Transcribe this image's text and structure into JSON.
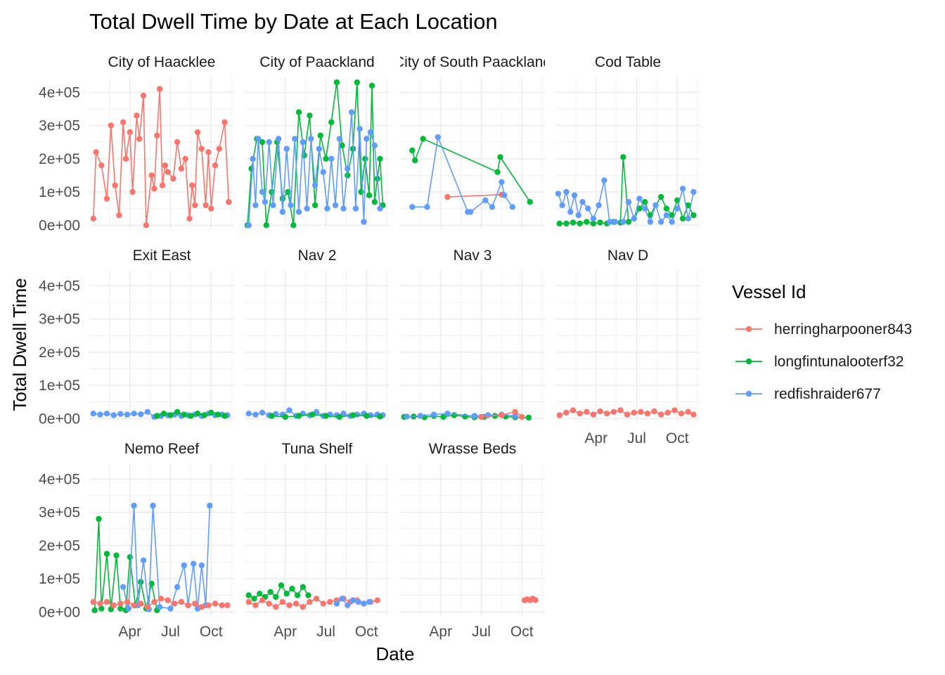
{
  "chart_data": {
    "type": "line",
    "title": "Total Dwell Time by Date at Each Location",
    "xlabel": "Date",
    "ylabel": "Total Dwell Time",
    "x_tick_labels": [
      "Apr",
      "Jul",
      "Oct"
    ],
    "y_tick_labels": [
      "0e+00",
      "1e+05",
      "2e+05",
      "3e+05",
      "4e+05"
    ],
    "y_ticks": [
      0,
      100000,
      200000,
      300000,
      400000
    ],
    "ylim": [
      -10000,
      445000
    ],
    "xlim": [
      0,
      10.7
    ],
    "x_tick_positions": [
      3,
      6,
      9
    ],
    "grid": true,
    "legend": {
      "title": "Vessel Id",
      "position": "right",
      "entries": [
        {
          "name": "herringharpooner843",
          "color": "#F8766D"
        },
        {
          "name": "longfintunalooterf32",
          "color": "#00BA38"
        },
        {
          "name": "redfishraider677",
          "color": "#619CFF"
        }
      ]
    },
    "facets": [
      {
        "name": "City of Haacklee",
        "series": [
          {
            "name": "herringharpooner843",
            "x": [
              0.3,
              0.5,
              0.9,
              1.3,
              1.6,
              1.9,
              2.2,
              2.5,
              2.7,
              3.0,
              3.2,
              3.5,
              3.7,
              4.0,
              4.2,
              4.6,
              4.8,
              5.0,
              5.2,
              5.4,
              5.6,
              5.8,
              6.2,
              6.5,
              6.8,
              7.1,
              7.4,
              7.6,
              7.8,
              8.0,
              8.3,
              8.6,
              8.8,
              9.0,
              9.3,
              9.6,
              10.0,
              10.3
            ],
            "y": [
              20000,
              220000,
              180000,
              80000,
              300000,
              120000,
              30000,
              310000,
              200000,
              280000,
              100000,
              330000,
              260000,
              390000,
              0,
              150000,
              110000,
              270000,
              410000,
              120000,
              180000,
              160000,
              140000,
              250000,
              170000,
              200000,
              20000,
              120000,
              60000,
              280000,
              230000,
              60000,
              220000,
              50000,
              180000,
              230000,
              310000,
              70000
            ]
          }
        ]
      },
      {
        "name": "City of Paackland",
        "series": [
          {
            "name": "longfintunalooterf32",
            "x": [
              0.2,
              0.5,
              0.9,
              1.3,
              1.6,
              2.0,
              2.4,
              2.8,
              3.2,
              3.6,
              4.0,
              4.4,
              4.8,
              5.2,
              5.6,
              6.0,
              6.4,
              6.8,
              7.2,
              7.6,
              8.0,
              8.3,
              8.6,
              8.9,
              9.2,
              9.4,
              9.6,
              9.8,
              10.0,
              10.2
            ],
            "y": [
              0,
              170000,
              260000,
              250000,
              0,
              100000,
              250000,
              80000,
              100000,
              0,
              340000,
              210000,
              330000,
              60000,
              270000,
              200000,
              310000,
              430000,
              240000,
              150000,
              230000,
              430000,
              100000,
              200000,
              90000,
              420000,
              70000,
              140000,
              200000,
              60000
            ]
          },
          {
            "name": "redfishraider677",
            "x": [
              0.3,
              0.6,
              0.8,
              1.0,
              1.3,
              1.5,
              1.8,
              2.1,
              2.5,
              2.8,
              3.1,
              3.4,
              3.7,
              4.0,
              4.3,
              4.6,
              4.9,
              5.2,
              5.5,
              5.8,
              6.1,
              6.4,
              6.7,
              7.0,
              7.3,
              7.6,
              7.9,
              8.2,
              8.5,
              8.8,
              9.0,
              9.3,
              9.6,
              10.0
            ],
            "y": [
              0,
              200000,
              60000,
              260000,
              100000,
              70000,
              250000,
              60000,
              260000,
              40000,
              230000,
              60000,
              260000,
              40000,
              250000,
              50000,
              260000,
              120000,
              230000,
              160000,
              50000,
              200000,
              60000,
              260000,
              50000,
              170000,
              340000,
              50000,
              290000,
              10000,
              260000,
              280000,
              240000,
              50000
            ]
          }
        ]
      },
      {
        "name": "City of South Paackland",
        "series": [
          {
            "name": "herringharpooner843",
            "x": [
              3.5,
              7.5
            ],
            "y": [
              85000,
              92000
            ]
          },
          {
            "name": "longfintunalooterf32",
            "x": [
              0.9,
              1.1,
              1.7,
              7.2,
              7.4,
              9.6
            ],
            "y": [
              225000,
              195000,
              260000,
              160000,
              205000,
              70000
            ]
          },
          {
            "name": "redfishraider677",
            "x": [
              0.9,
              2.0,
              2.8,
              5.0,
              5.2,
              6.3,
              6.8,
              7.5,
              7.7,
              8.3
            ],
            "y": [
              55000,
              55000,
              265000,
              40000,
              40000,
              75000,
              55000,
              130000,
              90000,
              55000
            ]
          }
        ]
      },
      {
        "name": "Cod Table",
        "series": [
          {
            "name": "longfintunalooterf32",
            "x": [
              0.3,
              0.8,
              1.3,
              1.8,
              2.3,
              2.8,
              3.3,
              3.8,
              4.3,
              4.8,
              5.0,
              5.4,
              5.8,
              6.2,
              6.6,
              7.0,
              7.4,
              7.8,
              8.2,
              8.6,
              9.0,
              9.4,
              9.8,
              10.2
            ],
            "y": [
              5000,
              5000,
              8000,
              5000,
              10000,
              5000,
              8000,
              5000,
              10000,
              8000,
              205000,
              10000,
              20000,
              50000,
              70000,
              30000,
              60000,
              85000,
              50000,
              30000,
              75000,
              20000,
              60000,
              30000
            ]
          },
          {
            "name": "redfishraider677",
            "x": [
              0.2,
              0.5,
              0.8,
              1.1,
              1.4,
              1.7,
              2.0,
              2.4,
              2.8,
              3.2,
              3.6,
              4.0,
              4.4,
              5.0,
              5.4,
              5.8,
              6.2,
              6.6,
              7.0,
              7.4,
              7.8,
              8.2,
              8.6,
              9.0,
              9.4,
              9.8,
              10.2
            ],
            "y": [
              95000,
              60000,
              100000,
              40000,
              90000,
              30000,
              70000,
              50000,
              20000,
              60000,
              135000,
              10000,
              10000,
              10000,
              70000,
              20000,
              80000,
              50000,
              10000,
              60000,
              10000,
              30000,
              10000,
              50000,
              110000,
              20000,
              100000
            ]
          }
        ]
      },
      {
        "name": "Exit East",
        "series": [
          {
            "name": "redfishraider677",
            "x": [
              0.3,
              0.8,
              1.3,
              1.8,
              2.3,
              2.8,
              3.3,
              3.8,
              4.3,
              4.8,
              5.3,
              5.8,
              6.3,
              6.8,
              7.3,
              7.8,
              8.3,
              8.8,
              9.3,
              9.8,
              10.2
            ],
            "y": [
              15000,
              12000,
              15000,
              10000,
              14000,
              12000,
              15000,
              13000,
              20000,
              5000,
              8000,
              10000,
              12000,
              8000,
              10000,
              12000,
              8000,
              15000,
              10000,
              12000,
              10000
            ]
          },
          {
            "name": "longfintunalooterf32",
            "x": [
              5.0,
              5.5,
              6.0,
              6.5,
              7.0,
              7.5,
              8.0,
              8.5,
              9.0,
              9.5,
              10.0
            ],
            "y": [
              8000,
              15000,
              10000,
              20000,
              12000,
              8000,
              15000,
              10000,
              18000,
              12000,
              8000
            ]
          }
        ]
      },
      {
        "name": "Nav 2",
        "series": [
          {
            "name": "redfishraider677",
            "x": [
              0.3,
              0.8,
              1.3,
              1.8,
              2.3,
              2.8,
              3.3,
              3.8,
              4.3,
              4.8,
              5.3,
              5.8,
              6.3,
              6.8,
              7.3,
              7.8,
              8.3,
              8.8,
              9.3,
              9.8,
              10.2
            ],
            "y": [
              15000,
              12000,
              18000,
              10000,
              14000,
              12000,
              25000,
              8000,
              15000,
              10000,
              20000,
              8000,
              12000,
              10000,
              15000,
              8000,
              12000,
              15000,
              10000,
              12000,
              10000
            ]
          },
          {
            "name": "longfintunalooterf32",
            "x": [
              2.0,
              3.0,
              4.0,
              5.0,
              6.0,
              7.0,
              8.0,
              9.0,
              10.0
            ],
            "y": [
              8000,
              5000,
              8000,
              12000,
              8000,
              5000,
              10000,
              8000,
              6000
            ]
          }
        ]
      },
      {
        "name": "Nav 3",
        "series": [
          {
            "name": "longfintunalooterf32",
            "x": [
              0.3,
              1.0,
              1.8,
              2.5,
              3.2,
              4.0,
              4.8,
              5.5,
              6.2,
              7.0,
              7.8,
              8.5,
              9.5
            ],
            "y": [
              5000,
              6000,
              4000,
              8000,
              5000,
              10000,
              6000,
              4000,
              5000,
              8000,
              6000,
              4000,
              3000
            ]
          },
          {
            "name": "redfishraider677",
            "x": [
              0.5,
              1.5,
              2.5,
              3.5,
              5.5,
              6.5,
              7.5,
              8.5
            ],
            "y": [
              6000,
              8000,
              12000,
              15000,
              8000,
              10000,
              12000,
              8000
            ]
          },
          {
            "name": "herringharpooner843",
            "x": [
              6.0,
              7.5,
              8.5,
              9.0
            ],
            "y": [
              5000,
              10000,
              20000,
              5000
            ]
          }
        ]
      },
      {
        "name": "Nav D",
        "series": [
          {
            "name": "herringharpooner843",
            "x": [
              0.3,
              0.8,
              1.3,
              1.8,
              2.3,
              2.8,
              3.3,
              3.8,
              4.3,
              4.8,
              5.3,
              5.8,
              6.3,
              6.8,
              7.3,
              7.8,
              8.3,
              8.8,
              9.3,
              9.8,
              10.2
            ],
            "y": [
              10000,
              18000,
              25000,
              15000,
              20000,
              12000,
              22000,
              15000,
              20000,
              25000,
              12000,
              18000,
              20000,
              15000,
              22000,
              12000,
              18000,
              25000,
              15000,
              20000,
              12000
            ]
          }
        ]
      },
      {
        "name": "Nemo Reef",
        "series": [
          {
            "name": "longfintunalooterf32",
            "x": [
              0.4,
              0.7,
              0.9,
              1.3,
              1.6,
              2.0,
              2.3,
              2.7,
              3.0,
              3.4,
              3.8,
              4.2,
              4.6,
              5.0
            ],
            "y": [
              5000,
              280000,
              10000,
              175000,
              8000,
              170000,
              10000,
              5000,
              165000,
              20000,
              90000,
              10000,
              85000,
              5000
            ]
          },
          {
            "name": "redfishraider677",
            "x": [
              2.5,
              2.9,
              3.3,
              3.6,
              4.0,
              4.4,
              4.7,
              5.2,
              6.0,
              6.5,
              7.0,
              7.3,
              7.7,
              8.0,
              8.3,
              8.6,
              8.9
            ],
            "y": [
              75000,
              10000,
              320000,
              20000,
              155000,
              8000,
              320000,
              15000,
              10000,
              75000,
              140000,
              20000,
              145000,
              10000,
              140000,
              20000,
              320000
            ]
          },
          {
            "name": "herringharpooner843",
            "x": [
              0.3,
              0.8,
              1.3,
              1.8,
              2.3,
              2.8,
              3.3,
              3.8,
              4.3,
              4.8,
              5.3,
              5.8,
              6.3,
              6.8,
              7.3,
              7.8,
              8.3,
              8.8,
              9.3,
              9.8,
              10.2
            ],
            "y": [
              30000,
              25000,
              30000,
              20000,
              25000,
              30000,
              20000,
              25000,
              15000,
              30000,
              40000,
              35000,
              25000,
              30000,
              20000,
              25000,
              15000,
              20000,
              25000,
              20000,
              20000
            ]
          }
        ]
      },
      {
        "name": "Tuna Shelf",
        "series": [
          {
            "name": "longfintunalooterf32",
            "x": [
              0.3,
              0.7,
              1.1,
              1.5,
              1.9,
              2.3,
              2.7,
              3.1,
              3.5,
              3.9,
              4.3,
              4.7
            ],
            "y": [
              50000,
              40000,
              55000,
              45000,
              60000,
              45000,
              80000,
              55000,
              70000,
              50000,
              75000,
              50000
            ]
          },
          {
            "name": "herringharpooner843",
            "x": [
              0.3,
              0.8,
              1.3,
              1.8,
              2.3,
              2.8,
              3.3,
              3.8,
              4.3,
              4.8,
              5.3,
              5.8,
              6.3,
              6.8,
              7.3,
              7.8,
              8.3,
              8.8,
              9.3,
              9.8
            ],
            "y": [
              30000,
              20000,
              35000,
              25000,
              15000,
              30000,
              20000,
              25000,
              15000,
              30000,
              40000,
              25000,
              30000,
              35000,
              40000,
              30000,
              35000,
              25000,
              30000,
              35000
            ]
          },
          {
            "name": "redfishraider677",
            "x": [
              6.8,
              7.2,
              7.6,
              8.0,
              8.4,
              8.8,
              9.2
            ],
            "y": [
              25000,
              40000,
              20000,
              35000,
              30000,
              25000,
              30000
            ]
          }
        ]
      },
      {
        "name": "Wrasse Beds",
        "series": [
          {
            "name": "herringharpooner843",
            "x": [
              9.2,
              9.4,
              9.6,
              9.8,
              10.0
            ],
            "y": [
              35000,
              38000,
              35000,
              40000,
              36000
            ]
          }
        ]
      }
    ]
  }
}
